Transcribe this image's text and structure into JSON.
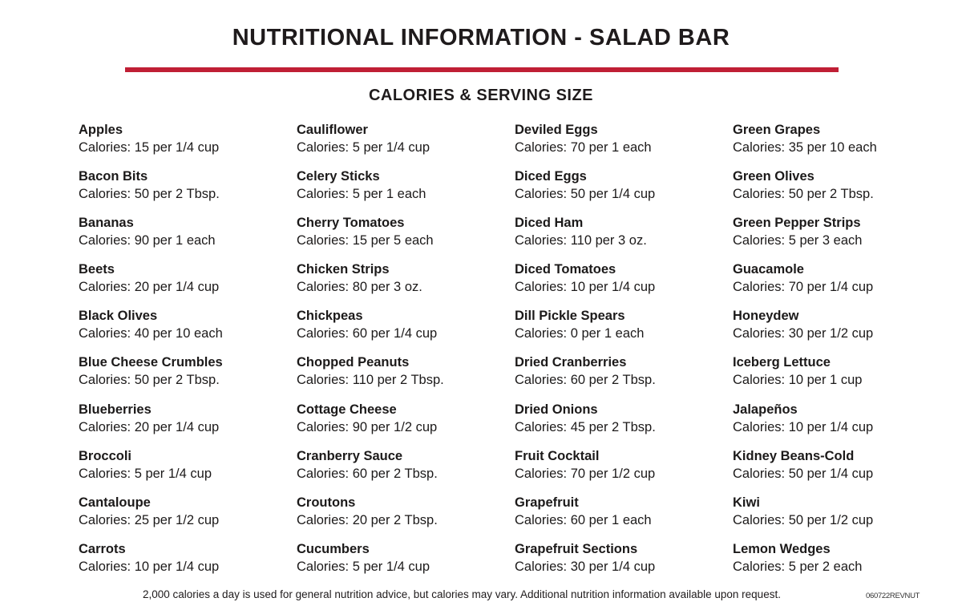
{
  "header": {
    "title": "NUTRITIONAL INFORMATION - SALAD BAR",
    "accent_color": "#c01f35",
    "subtitle": "CALORIES & SERVING SIZE"
  },
  "columns": [
    {
      "items": [
        {
          "name": "Apples",
          "calories": "Calories: 15 per 1/4 cup"
        },
        {
          "name": "Bacon Bits",
          "calories": "Calories: 50 per 2 Tbsp."
        },
        {
          "name": "Bananas",
          "calories": "Calories: 90 per 1 each"
        },
        {
          "name": "Beets",
          "calories": "Calories: 20 per 1/4 cup"
        },
        {
          "name": "Black Olives",
          "calories": "Calories: 40 per 10 each"
        },
        {
          "name": "Blue Cheese Crumbles",
          "calories": "Calories: 50 per 2 Tbsp."
        },
        {
          "name": "Blueberries",
          "calories": "Calories: 20 per 1/4 cup"
        },
        {
          "name": "Broccoli",
          "calories": "Calories: 5 per 1/4 cup"
        },
        {
          "name": "Cantaloupe",
          "calories": "Calories: 25 per 1/2 cup"
        },
        {
          "name": "Carrots",
          "calories": "Calories: 10 per 1/4 cup"
        }
      ]
    },
    {
      "items": [
        {
          "name": "Cauliflower",
          "calories": "Calories: 5 per 1/4 cup"
        },
        {
          "name": "Celery Sticks",
          "calories": "Calories: 5 per 1 each"
        },
        {
          "name": "Cherry Tomatoes",
          "calories": "Calories: 15 per 5 each"
        },
        {
          "name": "Chicken Strips",
          "calories": "Calories: 80 per 3 oz."
        },
        {
          "name": "Chickpeas",
          "calories": "Calories: 60 per 1/4 cup"
        },
        {
          "name": "Chopped Peanuts",
          "calories": "Calories: 110 per 2 Tbsp."
        },
        {
          "name": "Cottage Cheese",
          "calories": "Calories: 90 per 1/2 cup"
        },
        {
          "name": "Cranberry Sauce",
          "calories": "Calories: 60 per 2 Tbsp."
        },
        {
          "name": "Croutons",
          "calories": "Calories: 20 per 2 Tbsp."
        },
        {
          "name": "Cucumbers",
          "calories": "Calories: 5 per 1/4 cup"
        }
      ]
    },
    {
      "items": [
        {
          "name": "Deviled Eggs",
          "calories": "Calories: 70 per 1 each"
        },
        {
          "name": "Diced Eggs",
          "calories": "Calories: 50 per 1/4 cup"
        },
        {
          "name": "Diced Ham",
          "calories": "Calories: 110 per 3 oz."
        },
        {
          "name": "Diced Tomatoes",
          "calories": "Calories: 10 per 1/4 cup"
        },
        {
          "name": "Dill Pickle Spears",
          "calories": "Calories: 0 per 1 each"
        },
        {
          "name": "Dried Cranberries",
          "calories": "Calories: 60 per 2 Tbsp."
        },
        {
          "name": "Dried Onions",
          "calories": "Calories: 45 per 2 Tbsp."
        },
        {
          "name": "Fruit Cocktail",
          "calories": "Calories: 70 per 1/2 cup"
        },
        {
          "name": "Grapefruit",
          "calories": "Calories: 60 per 1 each"
        },
        {
          "name": "Grapefruit Sections",
          "calories": "Calories: 30 per 1/4 cup"
        }
      ]
    },
    {
      "items": [
        {
          "name": "Green Grapes",
          "calories": "Calories: 35 per 10 each"
        },
        {
          "name": "Green Olives",
          "calories": "Calories: 50 per 2 Tbsp."
        },
        {
          "name": "Green Pepper Strips",
          "calories": "Calories: 5 per 3 each"
        },
        {
          "name": "Guacamole",
          "calories": "Calories: 70 per 1/4 cup"
        },
        {
          "name": "Honeydew",
          "calories": "Calories: 30 per 1/2 cup"
        },
        {
          "name": "Iceberg Lettuce",
          "calories": "Calories: 10 per 1 cup"
        },
        {
          "name": "Jalapeños",
          "calories": "Calories: 10 per 1/4 cup"
        },
        {
          "name": "Kidney Beans-Cold",
          "calories": "Calories: 50 per 1/4 cup"
        },
        {
          "name": "Kiwi",
          "calories": "Calories: 50 per 1/2 cup"
        },
        {
          "name": "Lemon Wedges",
          "calories": "Calories: 5 per 2 each"
        }
      ]
    }
  ],
  "footer": {
    "disclaimer": "2,000 calories a day is used for general nutrition advice, but calories may vary.  Additional nutrition information available upon request.",
    "code": "060722REVNUT"
  }
}
